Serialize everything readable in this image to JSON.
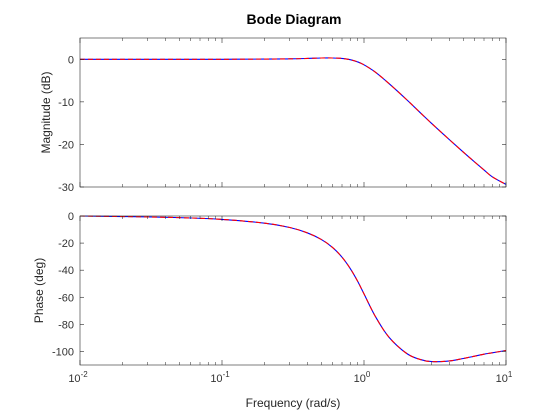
{
  "chart_data": {
    "type": "line",
    "title": "Bode Diagram",
    "xlabel": "Frequency (rad/s)",
    "x_scale": "log",
    "xlim": [
      0.01,
      10
    ],
    "x_tick_labels": [
      {
        "base": "10",
        "exp": "-2"
      },
      {
        "base": "10",
        "exp": "-1"
      },
      {
        "base": "10",
        "exp": "0"
      },
      {
        "base": "10",
        "exp": "1"
      }
    ],
    "x_tick_values": [
      0.01,
      0.1,
      1,
      10
    ],
    "series_colors": [
      "#0000ff",
      "#ff0000"
    ],
    "series_styles": [
      "solid",
      "dashed"
    ],
    "x": [
      0.01,
      0.02,
      0.05,
      0.1,
      0.2,
      0.3,
      0.4,
      0.5,
      0.6,
      0.7,
      0.8,
      0.9,
      1.0,
      1.2,
      1.5,
      2,
      2.5,
      3,
      4,
      5,
      6,
      7,
      8,
      10
    ],
    "subplots": [
      {
        "ylabel": "Magnitude (dB)",
        "ylim": [
          -30,
          5
        ],
        "yticks": [
          0,
          -10,
          -20,
          -30
        ],
        "ytick_labels": [
          "0",
          "-10",
          "-20",
          "-30"
        ],
        "values": [
          0.0,
          0.0,
          0.0,
          0.0,
          0.05,
          0.1,
          0.2,
          0.3,
          0.3,
          0.2,
          -0.1,
          -0.6,
          -1.3,
          -3.0,
          -5.7,
          -9.5,
          -12.6,
          -15.1,
          -18.9,
          -21.8,
          -24.1,
          -26.0,
          -27.6,
          -29.4
        ]
      },
      {
        "ylabel": "Phase (deg)",
        "ylim": [
          -110,
          0
        ],
        "yticks": [
          0,
          -20,
          -40,
          -60,
          -80,
          -100
        ],
        "ytick_labels": [
          "0",
          "-20",
          "-40",
          "-60",
          "-80",
          "-100"
        ],
        "values": [
          0.0,
          -0.4,
          -1.2,
          -2.5,
          -5.3,
          -8.5,
          -12.5,
          -17.3,
          -23.2,
          -30.4,
          -38.8,
          -48.0,
          -57.5,
          -74.0,
          -89.5,
          -101.5,
          -106.0,
          -107.5,
          -107.0,
          -105.2,
          -103.5,
          -102.0,
          -101.0,
          -99.3
        ]
      }
    ]
  }
}
